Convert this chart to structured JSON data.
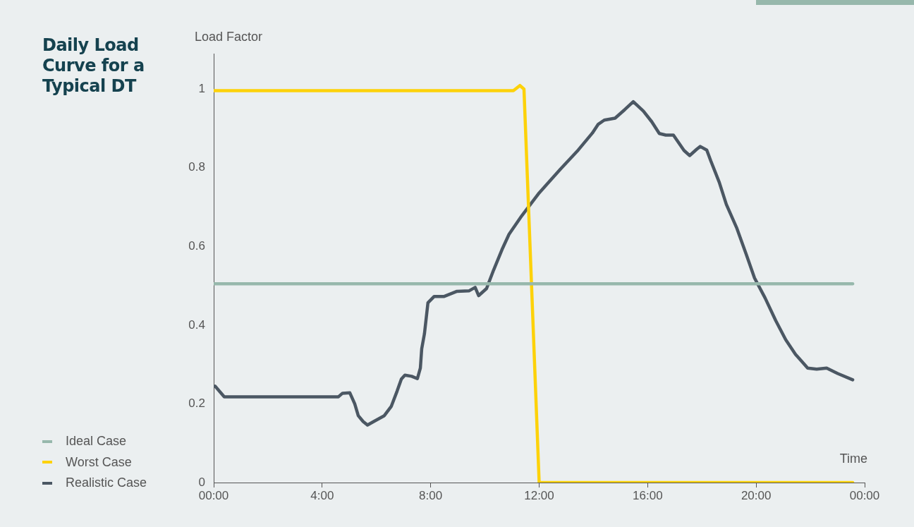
{
  "chart_data": {
    "type": "line",
    "title": "Daily Load Curve for a Typical DT",
    "xlabel": "Time",
    "ylabel": "Load Factor",
    "xlim": [
      0,
      24
    ],
    "xticks": [
      {
        "value": 0,
        "label": "00:00"
      },
      {
        "value": 4,
        "label": "4:00"
      },
      {
        "value": 8,
        "label": "8:00"
      },
      {
        "value": 12,
        "label": "12:00"
      },
      {
        "value": 16,
        "label": "16:00"
      },
      {
        "value": 20,
        "label": "20:00"
      },
      {
        "value": 24,
        "label": "00:00"
      }
    ],
    "ylim": [
      0,
      1.09
    ],
    "yticks": [
      0,
      0.2,
      0.4,
      0.6,
      0.8,
      1
    ],
    "grid": false,
    "legend": "bottom left",
    "marker": "none",
    "line_style": "solid",
    "series": [
      {
        "name": "Ideal Case",
        "color": "#97b8ac",
        "x": [
          0,
          23.56
        ],
        "values": [
          0.505,
          0.505
        ]
      },
      {
        "name": "Worst Case",
        "color": "#fdd20a",
        "x": [
          0,
          11.05,
          11.29,
          11.44,
          12.0,
          23.56
        ],
        "values": [
          0.996,
          0.996,
          1.009,
          1.0,
          0,
          0
        ]
      },
      {
        "name": "Realistic Case",
        "color": "#4b5763",
        "x": [
          0.05,
          0.39,
          4.6,
          4.75,
          5.02,
          5.2,
          5.33,
          5.51,
          5.67,
          5.9,
          6.29,
          6.55,
          6.76,
          6.92,
          7.05,
          7.3,
          7.51,
          7.62,
          7.67,
          7.77,
          7.9,
          8.13,
          8.5,
          8.97,
          9.41,
          9.64,
          9.77,
          10.06,
          10.32,
          10.63,
          10.89,
          11.36,
          12.0,
          12.79,
          13.44,
          13.96,
          14.17,
          14.4,
          14.8,
          15.16,
          15.47,
          15.84,
          16.15,
          16.43,
          16.67,
          16.95,
          17.34,
          17.55,
          17.81,
          17.94,
          18.18,
          18.33,
          18.64,
          18.9,
          19.29,
          19.63,
          19.94,
          20.33,
          20.72,
          21.09,
          21.45,
          21.9,
          22.23,
          22.6,
          23.01,
          23.56
        ],
        "values": [
          0.245,
          0.218,
          0.218,
          0.227,
          0.228,
          0.2,
          0.17,
          0.155,
          0.146,
          0.155,
          0.17,
          0.194,
          0.232,
          0.263,
          0.273,
          0.27,
          0.264,
          0.291,
          0.34,
          0.378,
          0.457,
          0.473,
          0.473,
          0.486,
          0.487,
          0.496,
          0.475,
          0.493,
          0.54,
          0.592,
          0.631,
          0.678,
          0.736,
          0.797,
          0.845,
          0.888,
          0.91,
          0.921,
          0.926,
          0.948,
          0.968,
          0.944,
          0.917,
          0.887,
          0.883,
          0.883,
          0.844,
          0.831,
          0.847,
          0.854,
          0.845,
          0.817,
          0.763,
          0.707,
          0.646,
          0.581,
          0.52,
          0.469,
          0.412,
          0.363,
          0.326,
          0.291,
          0.288,
          0.291,
          0.277,
          0.261
        ]
      }
    ]
  }
}
